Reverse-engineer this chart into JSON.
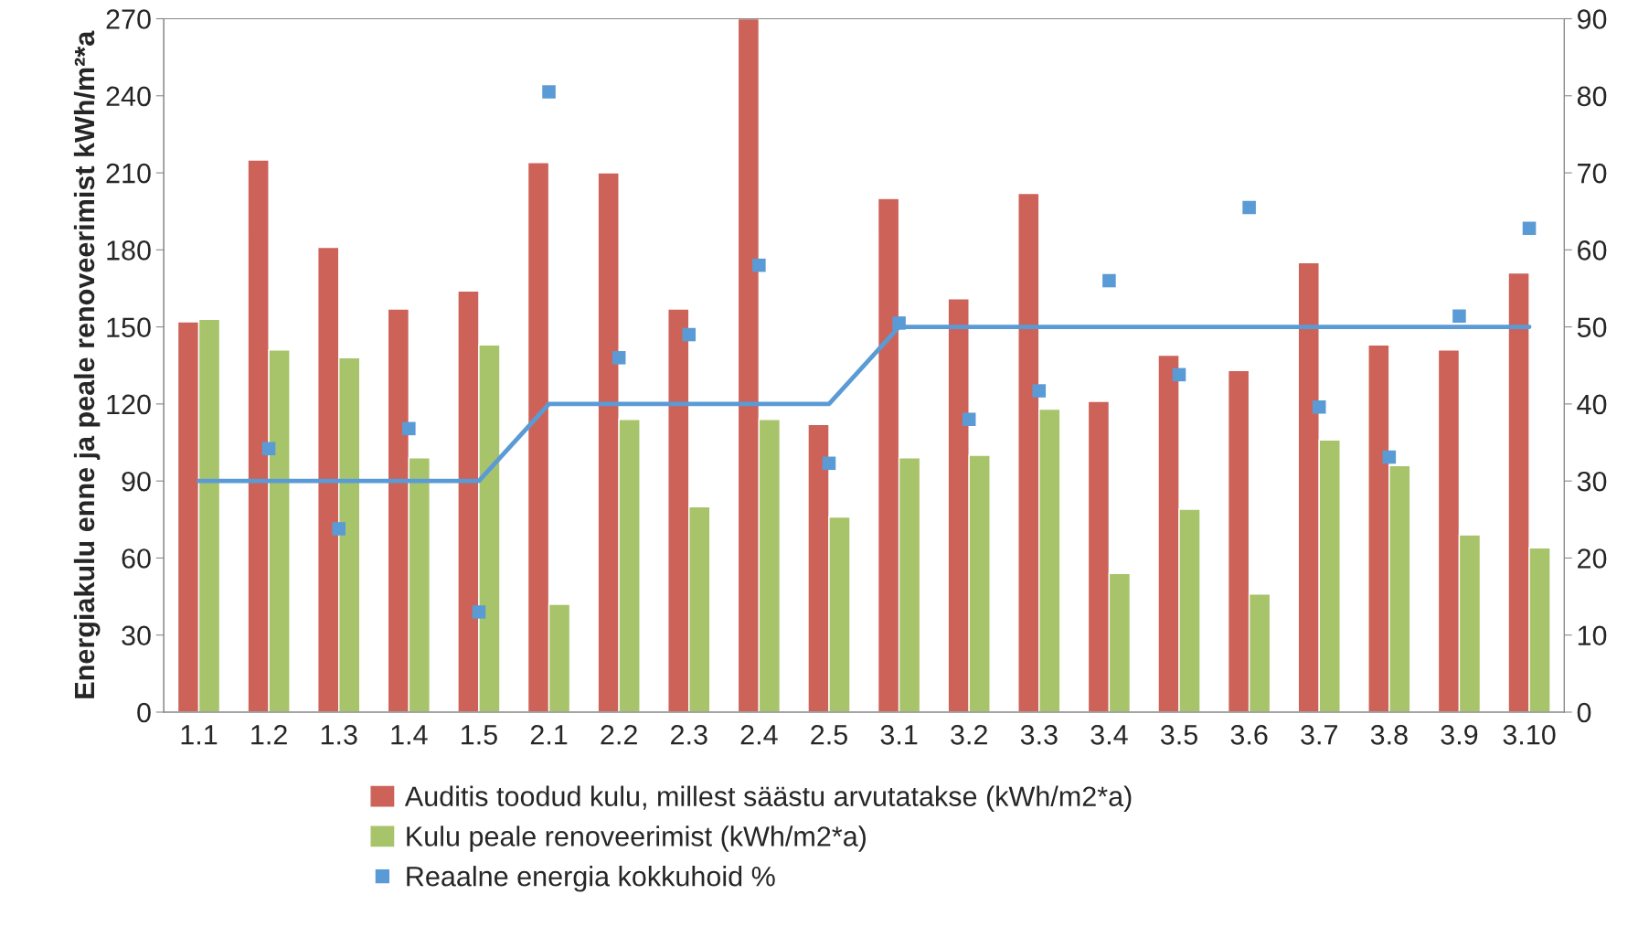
{
  "chart_data": {
    "type": "bar",
    "ylabel": "Energiakulu enne ja peale renoveerimist kWh/m²*a",
    "categories": [
      "1.1",
      "1.2",
      "1.3",
      "1.4",
      "1.5",
      "2.1",
      "2.2",
      "2.3",
      "2.4",
      "2.5",
      "3.1",
      "3.2",
      "3.3",
      "3.4",
      "3.5",
      "3.6",
      "3.7",
      "3.8",
      "3.9",
      "3.10"
    ],
    "series": [
      {
        "name": "Auditis toodud kulu, millest säästu arvutatakse (kWh/m2*a)",
        "color": "#cd6259",
        "values": [
          152,
          215,
          181,
          157,
          164,
          214,
          210,
          157,
          270,
          112,
          200,
          161,
          202,
          121,
          139,
          133,
          175,
          143,
          141,
          171
        ]
      },
      {
        "name": "Kulu peale renoveerimist (kWh/m2*a)",
        "color": "#a8c46b",
        "values": [
          153,
          141,
          138,
          99,
          143,
          42,
          114,
          80,
          114,
          76,
          99,
          100,
          118,
          54,
          79,
          46,
          106,
          96,
          69,
          64
        ]
      },
      {
        "name": "Reaalne energia kokkuhoid %",
        "type": "scatter",
        "axis": "y2",
        "marker": "square",
        "color": "#5b9bd5",
        "values": [
          null,
          34.2,
          23.8,
          36.8,
          13,
          80.5,
          46,
          49,
          58,
          32.3,
          50.5,
          38,
          41.7,
          56,
          43.8,
          65.5,
          39.6,
          33.1,
          51.4,
          62.8
        ]
      },
      {
        "type": "line",
        "axis": "y2",
        "marker": "none",
        "line_style": "solid",
        "color": "#5b9bd5",
        "values": [
          30,
          30,
          30,
          30,
          30,
          40,
          40,
          40,
          40,
          40,
          50,
          50,
          50,
          50,
          50,
          50,
          50,
          50,
          50,
          50
        ]
      }
    ],
    "ylim": [
      0,
      270
    ],
    "yticks": [
      0,
      30,
      60,
      90,
      120,
      150,
      180,
      210,
      240,
      270
    ],
    "y2lim": [
      0,
      90
    ],
    "y2ticks": [
      0,
      10,
      20,
      30,
      40,
      50,
      60,
      70,
      80,
      90
    ],
    "grid": false,
    "legend": "bottom"
  }
}
